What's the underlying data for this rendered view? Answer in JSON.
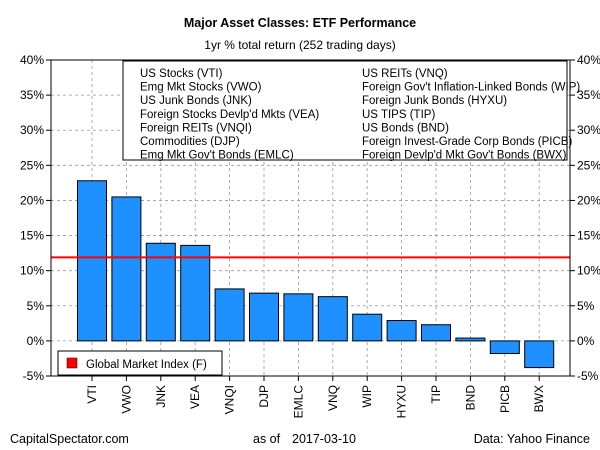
{
  "chart_data": {
    "type": "bar",
    "title": "Major Asset Classes: ETF Performance",
    "subtitle": "1yr % total return (252 trading days)",
    "categories": [
      "VTI",
      "VWO",
      "JNK",
      "VEA",
      "VNQI",
      "DJP",
      "EMLC",
      "VNQ",
      "WIP",
      "HYXU",
      "TIP",
      "BND",
      "PICB",
      "BWX"
    ],
    "values": [
      22.8,
      20.5,
      13.9,
      13.6,
      7.4,
      6.8,
      6.7,
      6.3,
      3.8,
      2.9,
      2.3,
      0.4,
      -1.8,
      -3.8
    ],
    "ylim": [
      -5,
      40
    ],
    "yticks": [
      -5,
      0,
      5,
      10,
      15,
      20,
      25,
      30,
      35,
      40
    ],
    "ytick_labels": [
      "-5%",
      "0%",
      "5%",
      "10%",
      "15%",
      "20%",
      "25%",
      "30%",
      "35%",
      "40%"
    ],
    "reference_line": {
      "label": "Global Market Index (F)",
      "value": 11.9,
      "color": "#ff0000"
    },
    "bar_color": "#1e90ff",
    "grid": true,
    "legend_left": [
      "US Stocks (VTI)",
      "Emg Mkt Stocks (VWO)",
      "US Junk Bonds (JNK)",
      "Foreign Stocks Devlp'd Mkts (VEA)",
      "Foreign REITs (VNQI)",
      "Commodities (DJP)",
      "Emg Mkt Gov't Bonds (EMLC)"
    ],
    "legend_right": [
      "US REITs (VNQ)",
      "Foreign Gov't Inflation-Linked Bonds (WIP)",
      "Foreign Junk Bonds (HYXU)",
      "US TIPS (TIP)",
      "US Bonds (BND)",
      "Foreign Invest-Grade Corp Bonds (PICB)",
      "Foreign Devlp'd Mkt Gov't Bonds (BWX)"
    ],
    "legend_placement": "top"
  },
  "footer": {
    "left": "CapitalSpectator.com",
    "center_label": "as of",
    "date": "2017-03-10",
    "right": "Data: Yahoo Finance"
  }
}
